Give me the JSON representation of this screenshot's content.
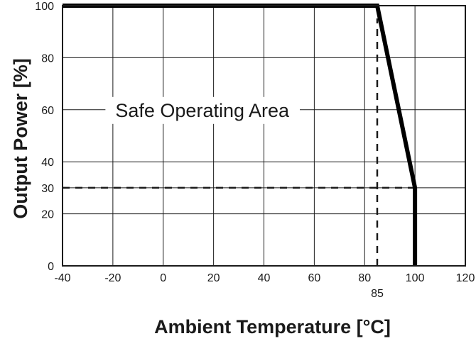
{
  "chart_data": {
    "type": "line",
    "title": "",
    "xlabel": "Ambient Temperature [°C]",
    "ylabel": "Output Power [%]",
    "xlim": [
      -40,
      120
    ],
    "ylim": [
      0,
      100
    ],
    "grid": true,
    "x_ticks": [
      "-40",
      "-20",
      "0",
      "20",
      "40",
      "60",
      "80",
      "100",
      "120"
    ],
    "y_ticks": [
      "0",
      "20",
      "30",
      "40",
      "60",
      "80",
      "100"
    ],
    "series": [
      {
        "x": [
          -40,
          85,
          100,
          100
        ],
        "y": [
          100,
          100,
          30,
          0
        ]
      }
    ],
    "reference_lines": [
      {
        "from": [
          85,
          0
        ],
        "to": [
          85,
          100
        ],
        "style": "dashed"
      },
      {
        "from": [
          -40,
          30
        ],
        "to": [
          100,
          30
        ],
        "style": "dashed"
      }
    ],
    "annotations": [
      {
        "text": "Safe Operating Area",
        "x": 3,
        "y": 60
      },
      {
        "text": "85",
        "x": 85,
        "y": 0,
        "placement": "below-axis"
      }
    ]
  }
}
